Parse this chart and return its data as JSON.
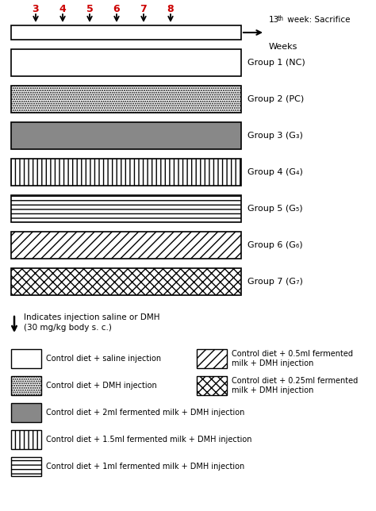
{
  "fig_width": 4.74,
  "fig_height": 6.44,
  "dpi": 100,
  "groups": [
    {
      "label": "Group 1 (NC)",
      "hatch": "",
      "facecolor": "white",
      "edgecolor": "black"
    },
    {
      "label": "Group 2 (PC)",
      "hatch": "......",
      "facecolor": "white",
      "edgecolor": "black"
    },
    {
      "label": "Group 3 (G₃)",
      "hatch": "",
      "facecolor": "#888888",
      "edgecolor": "black"
    },
    {
      "label": "Group 4 (G₄)",
      "hatch": "|||",
      "facecolor": "white",
      "edgecolor": "black"
    },
    {
      "label": "Group 5 (G₅)",
      "hatch": "---",
      "facecolor": "white",
      "edgecolor": "black"
    },
    {
      "label": "Group 6 (G₆)",
      "hatch": "///",
      "facecolor": "white",
      "edgecolor": "black"
    },
    {
      "label": "Group 7 (G₇)",
      "hatch": "xxx",
      "facecolor": "white",
      "edgecolor": "black"
    }
  ],
  "week_numbers": [
    "3",
    "4",
    "5",
    "6",
    "7",
    "8"
  ],
  "week_color": "#cc0000",
  "sacrifice_text_super": "th",
  "sacrifice_text": "13   week: Sacrifice",
  "weeks_label": "Weeks",
  "injection_note_line1": "Indicates injection saline or DMH",
  "injection_note_line2": "(30 mg/kg body s. c.)",
  "legend_col1": [
    {
      "hatch": "",
      "facecolor": "white",
      "edgecolor": "black",
      "text": "Control diet + saline injection"
    },
    {
      "hatch": "......",
      "facecolor": "white",
      "edgecolor": "black",
      "text": "Control diet + DMH injection"
    },
    {
      "hatch": "",
      "facecolor": "#888888",
      "edgecolor": "black",
      "text": "Control diet + 2ml fermented milk + DMH injection"
    },
    {
      "hatch": "|||",
      "facecolor": "white",
      "edgecolor": "black",
      "text": "Control diet + 1.5ml fermented milk + DMH injection"
    },
    {
      "hatch": "---",
      "facecolor": "white",
      "edgecolor": "black",
      "text": "Control diet + 1ml fermented milk + DMH injection"
    }
  ],
  "legend_col2": [
    {
      "hatch": "///",
      "facecolor": "white",
      "edgecolor": "black",
      "text": "Control diet + 0.5ml fermented\nmilk + DMH injection"
    },
    {
      "hatch": "xxx",
      "facecolor": "white",
      "edgecolor": "black",
      "text": "Control diet + 0.25ml fermented\nmilk + DMH injection"
    }
  ],
  "background_color": "white"
}
